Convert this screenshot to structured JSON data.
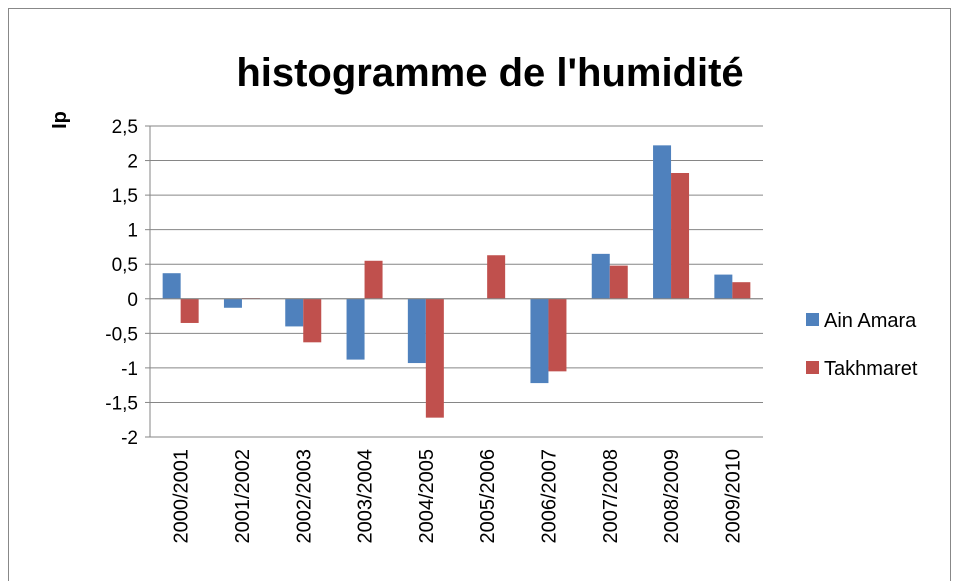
{
  "chart_data": {
    "type": "bar",
    "title": "histogramme de l'humidité",
    "y_label": "Ip",
    "categories": [
      "2000/2001",
      "2001/2002",
      "2002/2003",
      "2003/2004",
      "2004/2005",
      "2005/2006",
      "2006/2007",
      "2007/2008",
      "2008/2009",
      "2009/2010"
    ],
    "series": [
      {
        "name": "Ain Amara",
        "color": "#4f81bd",
        "values": [
          0.37,
          -0.13,
          -0.4,
          -0.88,
          -0.93,
          0,
          -1.22,
          0.65,
          2.22,
          0.35
        ]
      },
      {
        "name": "Takhmaret",
        "color": "#c0504d",
        "values": [
          -0.35,
          0.01,
          -0.63,
          0.55,
          -1.72,
          0.63,
          -1.05,
          0.48,
          1.82,
          0.24
        ]
      }
    ],
    "ylim": [
      -2,
      2.5
    ],
    "yticks": [
      -2,
      {
        "value": -1.5,
        "label": "-1,5"
      },
      -1,
      {
        "value": -0.5,
        "label": "-0,5"
      },
      0,
      {
        "value": 0.5,
        "label": "0,5"
      },
      1,
      {
        "value": 1.5,
        "label": "1,5"
      },
      2,
      {
        "value": 2.5,
        "label": "2,5"
      }
    ],
    "grid": true,
    "legend": "right"
  }
}
